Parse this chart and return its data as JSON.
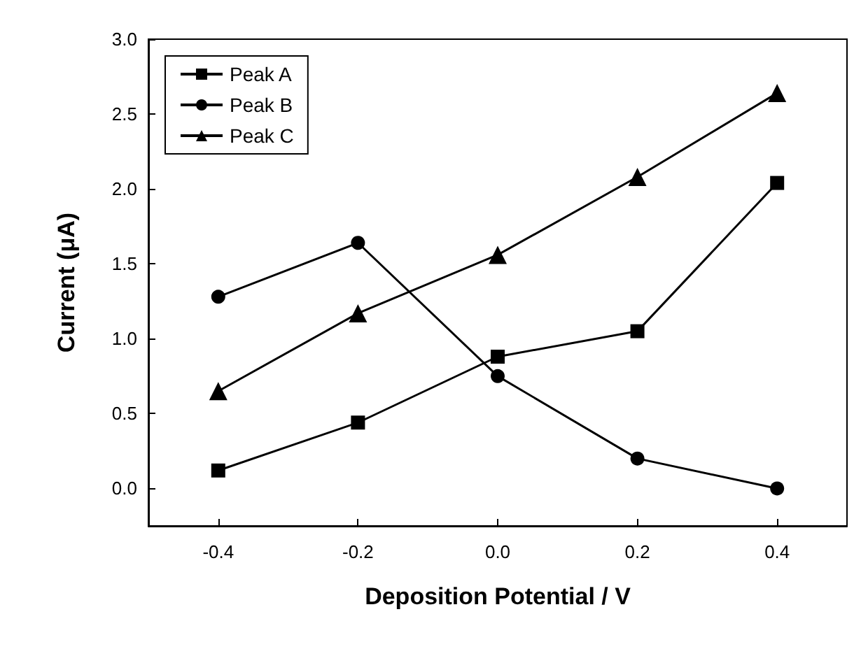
{
  "chart_data": {
    "type": "line",
    "xlabel": "Deposition Potential / V",
    "ylabel": "Current (μA)",
    "x": [
      -0.4,
      -0.2,
      0.0,
      0.2,
      0.4
    ],
    "series": [
      {
        "name": "Peak A",
        "color": "#000000",
        "marker": "square",
        "values": [
          0.12,
          0.44,
          0.88,
          1.05,
          2.04
        ]
      },
      {
        "name": "Peak B",
        "color": "#000000",
        "marker": "circle",
        "values": [
          1.28,
          1.64,
          0.75,
          0.2,
          0.0
        ]
      },
      {
        "name": "Peak C",
        "color": "#000000",
        "marker": "triangle",
        "values": [
          0.65,
          1.17,
          1.56,
          2.08,
          2.64
        ]
      }
    ],
    "xlim": [
      -0.5,
      0.5
    ],
    "xticks": [
      -0.4,
      -0.2,
      {
        "value": 0,
        "label": "0.0"
      },
      0.2,
      0.4
    ],
    "ylim": [
      -0.25,
      3.0
    ],
    "yticks": [
      {
        "value": 0,
        "label": "0.0"
      },
      0.5,
      {
        "value": 1,
        "label": "1.0"
      },
      1.5,
      {
        "value": 2,
        "label": "2.0"
      },
      2.5,
      {
        "value": 3,
        "label": "3.0"
      }
    ],
    "grid": false,
    "legend": "top left",
    "line_style": "solid"
  }
}
